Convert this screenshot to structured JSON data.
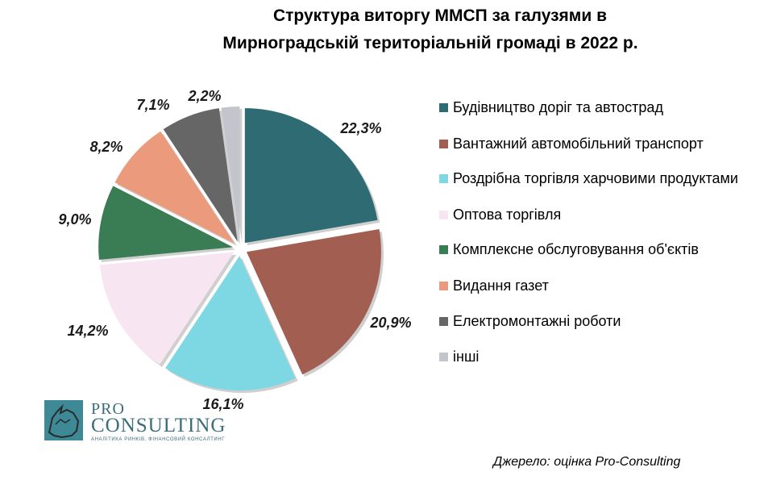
{
  "title": {
    "line1": "Структура виторгу ММСП за галузями в",
    "line2": "Мирноградській територіальній громаді в 2022 р."
  },
  "chart_data": {
    "type": "pie",
    "title": "Структура виторгу ММСП за галузями в Мирноградській територіальній громаді в 2022 р.",
    "categories": [
      "Будівництво доріг та автострад",
      "Вантажний автомобільний транспорт",
      "Роздрібна торгівля харчовими продуктами",
      "Оптова торгівля",
      "Комплексне обслуговування об'єктів",
      "Видання газет",
      "Електромонтажні роботи",
      "інші"
    ],
    "values": [
      22.3,
      20.9,
      16.1,
      14.2,
      9.0,
      8.2,
      7.1,
      2.2
    ],
    "value_labels": [
      "22,3%",
      "20,9%",
      "16,1%",
      "14,2%",
      "9,0%",
      "8,2%",
      "7,1%",
      "2,2%"
    ],
    "colors": [
      "#2e6b72",
      "#a35e52",
      "#7dd8e4",
      "#f7e6f2",
      "#3a7d55",
      "#eb9b7c",
      "#666666",
      "#c4c4cc"
    ],
    "legend_position": "right"
  },
  "legend": [
    {
      "label": "Будівництво доріг та автострад"
    },
    {
      "label": "Вантажний автомобільний транспорт"
    },
    {
      "label": "Роздрібна торгівля харчовими продуктами"
    },
    {
      "label": "Оптова торгівля"
    },
    {
      "label": "Комплексне обслуговування об'єктів"
    },
    {
      "label": "Видання газет"
    },
    {
      "label": "Електромонтажні роботи"
    },
    {
      "label": "інші"
    }
  ],
  "logo": {
    "pro": "PRO",
    "consulting": "CONSULTING",
    "tagline": "АНАЛІТИКА РИНКІВ. ФІНАНСОВИЙ КОНСАЛТИНГ"
  },
  "source": "Джерело: оцінка Pro-Consulting"
}
